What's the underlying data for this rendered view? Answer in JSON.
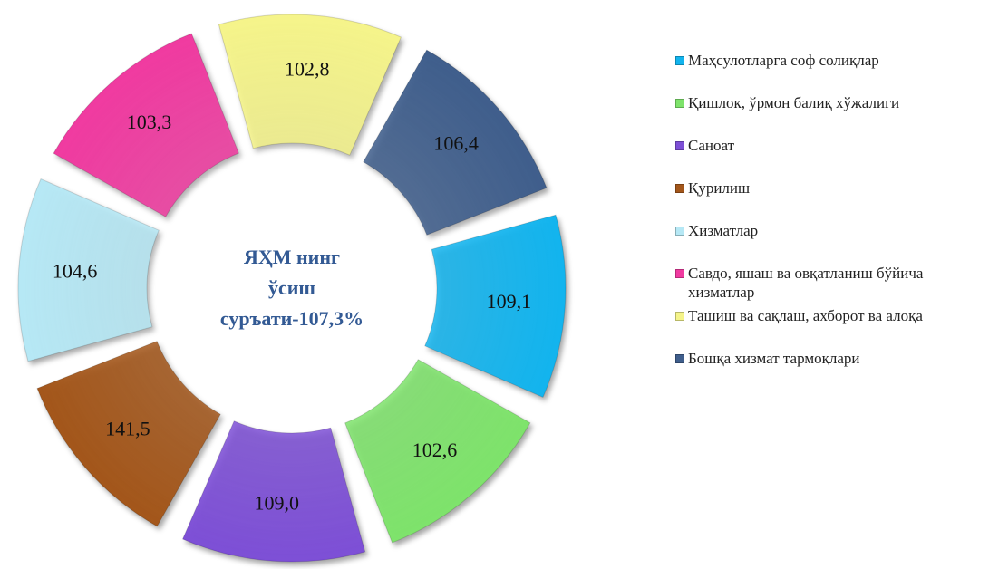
{
  "chart_data": {
    "type": "donut",
    "categories": [
      "Маҳсулотларга соф солиқлар",
      "Қишлок, ўрмон балиқ хўжалиги",
      "Саноат",
      "Қурилиш",
      "Хизматлар",
      "Савдо, яшаш ва овқатланиш бўйича хизматлар",
      "Ташиш ва сақлаш, ахборот ва алоқа",
      "Бошқа хизмат тармоқлари"
    ],
    "values": [
      109.1,
      102.6,
      109.0,
      141.5,
      104.6,
      103.3,
      102.8,
      106.4
    ],
    "value_labels": [
      "109,1",
      "102,6",
      "109,0",
      "141,5",
      "104,6",
      "103,3",
      "102,8",
      "106,4"
    ],
    "colors": [
      "#12b4ee",
      "#7ee36b",
      "#7d4fd6",
      "#a3561a",
      "#b6e8f5",
      "#f03aa0",
      "#f5f48a",
      "#3f5e8c"
    ],
    "center_label": [
      "ЯҲМ нинг",
      "ўсиш",
      "суръати-107,3%"
    ],
    "legend": "right"
  }
}
